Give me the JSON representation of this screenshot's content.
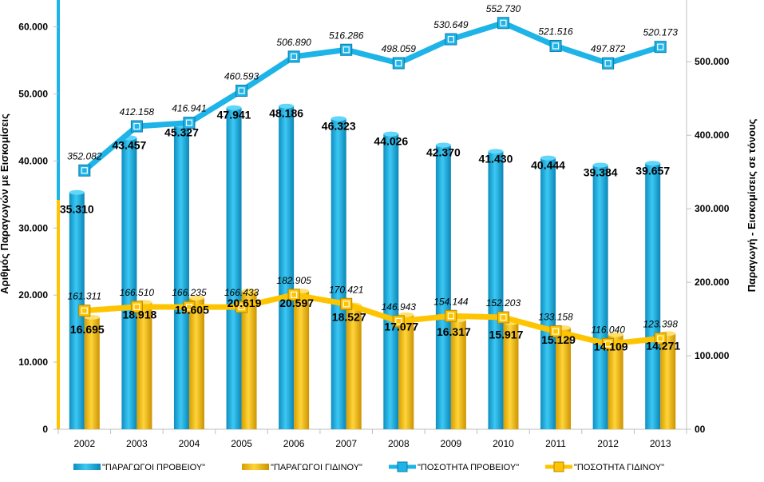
{
  "chart_data": {
    "type": "bar",
    "categories": [
      "2002",
      "2003",
      "2004",
      "2005",
      "2006",
      "2007",
      "2008",
      "2009",
      "2010",
      "2011",
      "2012",
      "2013"
    ],
    "series": [
      {
        "name": "\"ΠΑΡΑΓΩΓΟΙ ΠΡΟΒΕΙΟΥ\"",
        "kind": "bar",
        "axis": "left",
        "color": "#1EB4E8",
        "values": [
          35310,
          43457,
          45327,
          47941,
          48186,
          46323,
          44026,
          42370,
          41430,
          40444,
          39384,
          39657
        ],
        "labels": [
          "35.310",
          "43.457",
          "45.327",
          "47.941",
          "48.186",
          "46.323",
          "44.026",
          "42.370",
          "41.430",
          "40.444",
          "39.384",
          "39.657"
        ]
      },
      {
        "name": "\"ΠΑΡΑΓΩΓΟΙ ΓΙΔΙΝΟΥ\"",
        "kind": "bar",
        "axis": "left",
        "color": "#FFC400",
        "values": [
          16695,
          18918,
          19605,
          20619,
          20597,
          18527,
          17077,
          16317,
          15917,
          15129,
          14109,
          14271
        ],
        "labels": [
          "16.695",
          "18.918",
          "19.605",
          "20.619",
          "20.597",
          "18.527",
          "17.077",
          "16.317",
          "15.917",
          "15.129",
          "14.109",
          "14.271"
        ]
      },
      {
        "name": "\"ΠΟΣΟΤΗΤΑ ΠΡΟΒΕΙΟΥ\"",
        "kind": "line",
        "axis": "right",
        "color": "#1EB4E8",
        "values": [
          352082,
          412158,
          416941,
          460593,
          506890,
          516286,
          498059,
          530649,
          552730,
          521516,
          497872,
          520173
        ],
        "labels": [
          "352.082",
          "412.158",
          "416.941",
          "460.593",
          "506.890",
          "516.286",
          "498.059",
          "530.649",
          "552.730",
          "521.516",
          "497.872",
          "520.173"
        ]
      },
      {
        "name": "\"ΠΟΣΟΤΗΤΑ ΓΙΔΙΝΟΥ\"",
        "kind": "line",
        "axis": "right",
        "color": "#FFC400",
        "values": [
          161311,
          166510,
          166235,
          166433,
          182905,
          170421,
          146943,
          154144,
          152203,
          133158,
          116040,
          123398
        ],
        "labels": [
          "161.311",
          "166.510",
          "166.235",
          "166.433",
          "182.905",
          "170.421",
          "146.943",
          "154.144",
          "152.203",
          "133.158",
          "116.040",
          "123.398"
        ]
      }
    ],
    "ylabel": "Αριθμός Παραγωγών με Εισκομίσεις",
    "y2label": "Παραγωγή - Εισκομίσεις σε τόνους",
    "ylim": [
      0,
      64000
    ],
    "y2lim": [
      0,
      584000
    ],
    "yticks": [
      0,
      10000,
      20000,
      30000,
      40000,
      50000,
      60000
    ],
    "yticklabels": [
      "0",
      "10.000",
      "20.000",
      "30.000",
      "40.000",
      "50.000",
      "60.000"
    ],
    "y2ticks": [
      0,
      100000,
      200000,
      300000,
      400000,
      500000
    ],
    "y2ticklabels": [
      "00",
      "100.000",
      "200.000",
      "300.000",
      "400.000",
      "500.000"
    ],
    "grid": false,
    "legend": "bottom"
  }
}
